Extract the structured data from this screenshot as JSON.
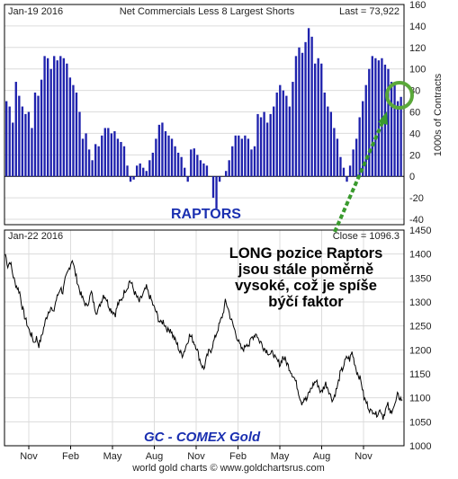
{
  "colors": {
    "bar": "#1f22ad",
    "line": "#000000",
    "grid": "#dcdcdc",
    "arrow": "#3a9a2e",
    "circle": "#5aa83a",
    "label_blue": "#1a2fb0"
  },
  "chart_data": [
    {
      "type": "bar",
      "header_left": "Jan-19  2016",
      "title": "Net Commercials Less 8 Largest Shorts",
      "header_right": "Last = 73,922",
      "ylabel": "1000s of Contracts",
      "label": "RAPTORS",
      "ylim": [
        -45,
        160
      ],
      "yticks": [
        "160",
        "140",
        "120",
        "100",
        "80",
        "60",
        "40",
        "20",
        "0",
        "-20",
        "-40"
      ],
      "grid": true,
      "values": [
        70,
        65,
        50,
        88,
        75,
        65,
        58,
        60,
        45,
        78,
        75,
        90,
        112,
        110,
        100,
        112,
        108,
        112,
        110,
        105,
        92,
        85,
        78,
        60,
        35,
        40,
        25,
        15,
        30,
        28,
        38,
        45,
        45,
        40,
        42,
        35,
        32,
        28,
        10,
        -5,
        -3,
        10,
        12,
        8,
        5,
        15,
        22,
        35,
        48,
        50,
        42,
        38,
        35,
        28,
        22,
        18,
        8,
        -5,
        25,
        26,
        20,
        15,
        12,
        10,
        0,
        -20,
        -30,
        -5,
        0,
        5,
        15,
        28,
        38,
        38,
        35,
        38,
        35,
        25,
        28,
        58,
        55,
        60,
        50,
        58,
        65,
        78,
        85,
        80,
        75,
        65,
        88,
        112,
        120,
        115,
        125,
        138,
        130,
        105,
        110,
        105,
        78,
        65,
        60,
        45,
        35,
        18,
        8,
        -5,
        10,
        25,
        35,
        55,
        70,
        85,
        100,
        112,
        110,
        108,
        110,
        104,
        100,
        88,
        85,
        70,
        74
      ]
    },
    {
      "type": "line",
      "header_left": "Jan-22  2016",
      "header_right": "Close = 1096.3",
      "label": "GC - COMEX Gold",
      "x_tick_labels": [
        "Nov",
        "Feb",
        "May",
        "Aug",
        "Nov",
        "Feb",
        "May",
        "Aug",
        "Nov"
      ],
      "y_tick_labels": [
        "1450",
        "1400",
        "1350",
        "1300",
        "1250",
        "1200",
        "1150",
        "1100",
        "1050",
        "1000"
      ],
      "ylim": [
        1000,
        1450
      ],
      "grid": true,
      "values": [
        1400,
        1375,
        1385,
        1360,
        1340,
        1330,
        1320,
        1290,
        1270,
        1255,
        1240,
        1230,
        1215,
        1225,
        1210,
        1225,
        1245,
        1265,
        1280,
        1290,
        1275,
        1300,
        1315,
        1330,
        1320,
        1345,
        1360,
        1375,
        1390,
        1365,
        1345,
        1325,
        1310,
        1300,
        1290,
        1305,
        1320,
        1295,
        1280,
        1285,
        1300,
        1315,
        1310,
        1295,
        1285,
        1280,
        1275,
        1295,
        1300,
        1310,
        1325,
        1330,
        1345,
        1335,
        1320,
        1310,
        1300,
        1310,
        1320,
        1330,
        1315,
        1305,
        1290,
        1280,
        1265,
        1255,
        1260,
        1250,
        1240,
        1245,
        1230,
        1220,
        1210,
        1195,
        1190,
        1200,
        1215,
        1230,
        1225,
        1215,
        1205,
        1185,
        1170,
        1160,
        1180,
        1195,
        1200,
        1215,
        1230,
        1245,
        1260,
        1275,
        1300,
        1290,
        1270,
        1255,
        1240,
        1225,
        1210,
        1200,
        1205,
        1215,
        1210,
        1225,
        1230,
        1235,
        1220,
        1215,
        1205,
        1200,
        1195,
        1190,
        1195,
        1180,
        1175,
        1170,
        1185,
        1180,
        1170,
        1160,
        1150,
        1140,
        1125,
        1105,
        1090,
        1100,
        1095,
        1110,
        1120,
        1130,
        1135,
        1125,
        1110,
        1120,
        1130,
        1120,
        1105,
        1095,
        1110,
        1125,
        1150,
        1160,
        1175,
        1185,
        1180,
        1195,
        1175,
        1155,
        1145,
        1130,
        1100,
        1090,
        1080,
        1070,
        1075,
        1065,
        1070,
        1075,
        1060,
        1075,
        1085,
        1065,
        1080,
        1085,
        1105,
        1100,
        1096
      ],
      "annotation": [
        "LONG pozice Raptors",
        "jsou stále poměrně",
        "vysoké, což je spíše",
        "býčí faktor"
      ]
    }
  ],
  "footer": "world gold charts © www.goldchartsrus.com"
}
